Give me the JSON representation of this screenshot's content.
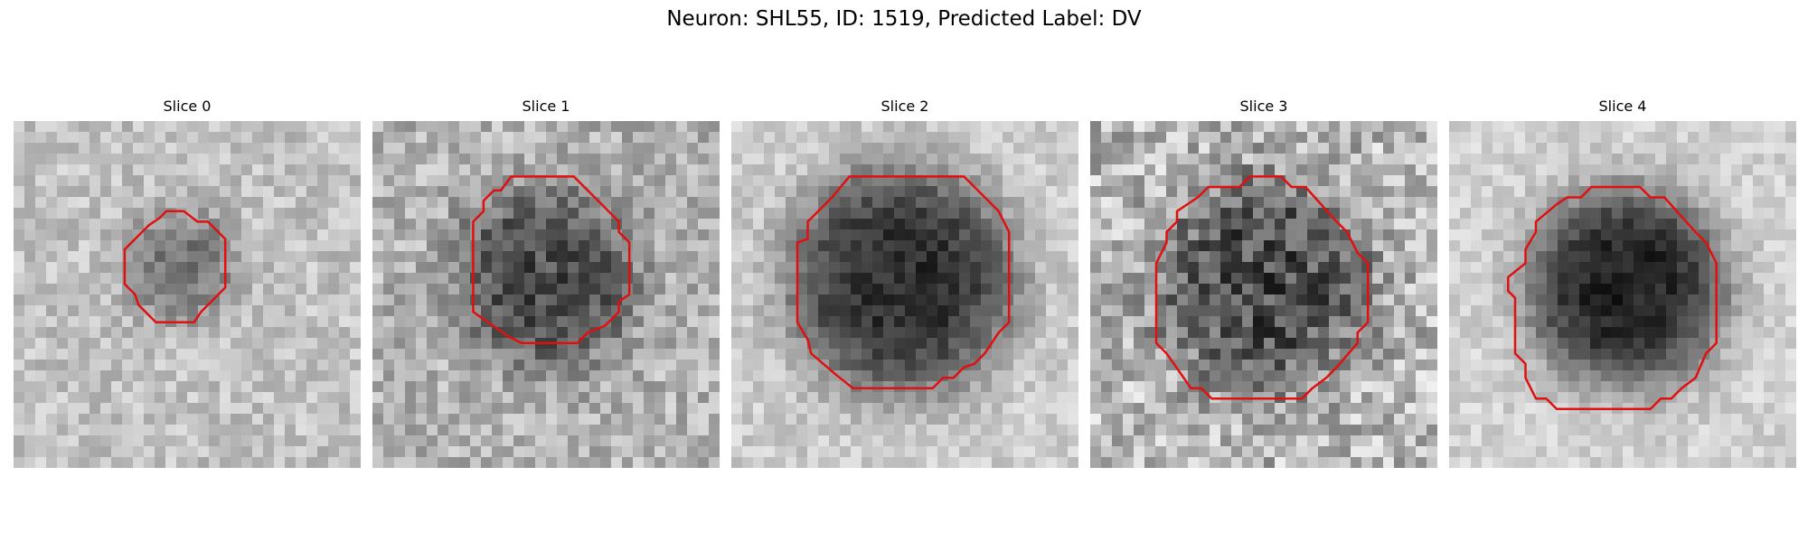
{
  "figure": {
    "title": "Neuron: SHL55, ID: 1519, Predicted Label: DV",
    "contour_color": "#e01010",
    "colormap": "gray",
    "slices": [
      {
        "title": "Slice 0",
        "base_gray": 0.76,
        "blob_center": [
          0.48,
          0.42
        ],
        "blob_radius": 0.17,
        "blob_depth": 0.28,
        "noise": 0.12,
        "contour": [
          [
            0.44,
            0.26
          ],
          [
            0.49,
            0.26
          ],
          [
            0.53,
            0.29
          ],
          [
            0.56,
            0.29
          ],
          [
            0.61,
            0.34
          ],
          [
            0.61,
            0.48
          ],
          [
            0.54,
            0.55
          ],
          [
            0.52,
            0.58
          ],
          [
            0.41,
            0.58
          ],
          [
            0.36,
            0.53
          ],
          [
            0.35,
            0.5
          ],
          [
            0.32,
            0.47
          ],
          [
            0.32,
            0.37
          ],
          [
            0.39,
            0.3
          ],
          [
            0.42,
            0.28
          ]
        ]
      },
      {
        "title": "Slice 1",
        "base_gray": 0.7,
        "blob_center": [
          0.5,
          0.45
        ],
        "blob_radius": 0.27,
        "blob_depth": 0.4,
        "noise": 0.16,
        "contour": [
          [
            0.4,
            0.16
          ],
          [
            0.58,
            0.16
          ],
          [
            0.65,
            0.23
          ],
          [
            0.71,
            0.29
          ],
          [
            0.71,
            0.32
          ],
          [
            0.74,
            0.35
          ],
          [
            0.74,
            0.5
          ],
          [
            0.71,
            0.52
          ],
          [
            0.71,
            0.55
          ],
          [
            0.67,
            0.59
          ],
          [
            0.62,
            0.61
          ],
          [
            0.59,
            0.64
          ],
          [
            0.43,
            0.64
          ],
          [
            0.39,
            0.62
          ],
          [
            0.29,
            0.55
          ],
          [
            0.29,
            0.29
          ],
          [
            0.32,
            0.26
          ],
          [
            0.32,
            0.23
          ],
          [
            0.35,
            0.2
          ],
          [
            0.37,
            0.2
          ]
        ]
      },
      {
        "title": "Slice 2",
        "base_gray": 0.8,
        "blob_center": [
          0.49,
          0.46
        ],
        "blob_radius": 0.33,
        "blob_depth": 0.62,
        "noise": 0.1,
        "contour": [
          [
            0.34,
            0.16
          ],
          [
            0.67,
            0.16
          ],
          [
            0.77,
            0.26
          ],
          [
            0.8,
            0.32
          ],
          [
            0.8,
            0.58
          ],
          [
            0.77,
            0.61
          ],
          [
            0.73,
            0.67
          ],
          [
            0.7,
            0.7
          ],
          [
            0.67,
            0.71
          ],
          [
            0.64,
            0.74
          ],
          [
            0.61,
            0.74
          ],
          [
            0.58,
            0.77
          ],
          [
            0.35,
            0.77
          ],
          [
            0.3,
            0.73
          ],
          [
            0.23,
            0.67
          ],
          [
            0.22,
            0.63
          ],
          [
            0.19,
            0.58
          ],
          [
            0.19,
            0.35
          ],
          [
            0.22,
            0.34
          ],
          [
            0.22,
            0.29
          ],
          [
            0.29,
            0.22
          ]
        ]
      },
      {
        "title": "Slice 3",
        "base_gray": 0.72,
        "blob_center": [
          0.5,
          0.47
        ],
        "blob_radius": 0.31,
        "blob_depth": 0.42,
        "noise": 0.22,
        "contour": [
          [
            0.4,
            0.19
          ],
          [
            0.43,
            0.19
          ],
          [
            0.46,
            0.16
          ],
          [
            0.55,
            0.16
          ],
          [
            0.58,
            0.19
          ],
          [
            0.62,
            0.19
          ],
          [
            0.71,
            0.29
          ],
          [
            0.74,
            0.32
          ],
          [
            0.77,
            0.38
          ],
          [
            0.8,
            0.41
          ],
          [
            0.8,
            0.58
          ],
          [
            0.77,
            0.61
          ],
          [
            0.77,
            0.64
          ],
          [
            0.71,
            0.71
          ],
          [
            0.68,
            0.74
          ],
          [
            0.64,
            0.77
          ],
          [
            0.61,
            0.8
          ],
          [
            0.35,
            0.8
          ],
          [
            0.32,
            0.77
          ],
          [
            0.29,
            0.77
          ],
          [
            0.22,
            0.67
          ],
          [
            0.19,
            0.64
          ],
          [
            0.19,
            0.41
          ],
          [
            0.22,
            0.35
          ],
          [
            0.22,
            0.32
          ],
          [
            0.25,
            0.29
          ],
          [
            0.25,
            0.26
          ],
          [
            0.31,
            0.22
          ],
          [
            0.34,
            0.19
          ]
        ]
      },
      {
        "title": "Slice 4",
        "base_gray": 0.82,
        "blob_center": [
          0.51,
          0.48
        ],
        "blob_radius": 0.29,
        "blob_depth": 0.68,
        "noise": 0.09,
        "contour": [
          [
            0.41,
            0.19
          ],
          [
            0.55,
            0.19
          ],
          [
            0.58,
            0.22
          ],
          [
            0.62,
            0.22
          ],
          [
            0.71,
            0.32
          ],
          [
            0.74,
            0.35
          ],
          [
            0.77,
            0.41
          ],
          [
            0.77,
            0.64
          ],
          [
            0.74,
            0.67
          ],
          [
            0.71,
            0.74
          ],
          [
            0.67,
            0.77
          ],
          [
            0.64,
            0.8
          ],
          [
            0.61,
            0.8
          ],
          [
            0.58,
            0.83
          ],
          [
            0.31,
            0.83
          ],
          [
            0.28,
            0.8
          ],
          [
            0.25,
            0.8
          ],
          [
            0.22,
            0.74
          ],
          [
            0.22,
            0.7
          ],
          [
            0.19,
            0.67
          ],
          [
            0.19,
            0.51
          ],
          [
            0.17,
            0.49
          ],
          [
            0.17,
            0.45
          ],
          [
            0.22,
            0.41
          ],
          [
            0.22,
            0.37
          ],
          [
            0.25,
            0.32
          ],
          [
            0.25,
            0.29
          ],
          [
            0.31,
            0.24
          ],
          [
            0.34,
            0.22
          ],
          [
            0.38,
            0.22
          ]
        ]
      }
    ]
  }
}
